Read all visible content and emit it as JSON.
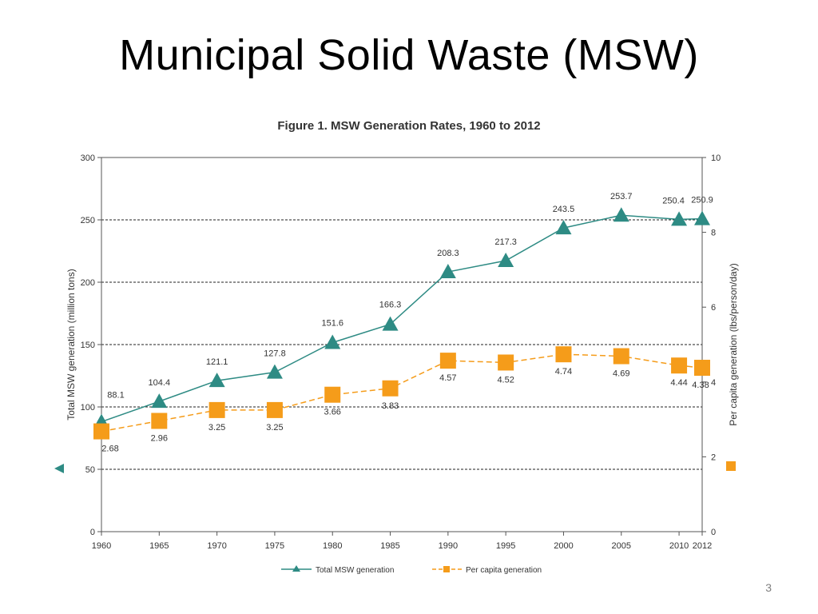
{
  "slide": {
    "title": "Municipal Solid Waste (MSW)",
    "page_number": "3"
  },
  "chart_data": {
    "type": "line",
    "title": "Figure 1. MSW Generation Rates, 1960 to 2012",
    "x": [
      1960,
      1965,
      1970,
      1975,
      1980,
      1985,
      1990,
      1995,
      2000,
      2005,
      2010,
      2012
    ],
    "x_tick_labels": [
      "1960",
      "1965",
      "1970",
      "1975",
      "1980",
      "1985",
      "1990",
      "1995",
      "2000",
      "2005",
      "2010",
      "2012"
    ],
    "ylabel_left": "Total MSW generation (million tons)",
    "ylabel_right": "Per capita generation (lbs/person/day)",
    "ylim_left": [
      0,
      300
    ],
    "ylim_right": [
      0,
      10
    ],
    "yticks_left": [
      "0",
      "50",
      "100",
      "150",
      "200",
      "250",
      "300"
    ],
    "yticks_right": [
      "0",
      "2",
      "4",
      "6",
      "8",
      "10"
    ],
    "grid": "horizontal dashed",
    "legend_position": "bottom",
    "series": [
      {
        "name": "Total MSW generation",
        "axis": "left",
        "marker": "triangle",
        "color": "#2e8b84",
        "values": [
          88.1,
          104.4,
          121.1,
          127.8,
          151.6,
          166.3,
          208.3,
          217.3,
          243.5,
          253.7,
          250.4,
          250.9
        ],
        "labels": [
          "88.1",
          "104.4",
          "121.1",
          "127.8",
          "151.6",
          "166.3",
          "208.3",
          "217.3",
          "243.5",
          "253.7",
          "250.4",
          "250.9"
        ]
      },
      {
        "name": "Per capita generation",
        "axis": "right",
        "marker": "square",
        "color": "#f59c1a",
        "values": [
          2.68,
          2.96,
          3.25,
          3.25,
          3.66,
          3.83,
          4.57,
          4.52,
          4.74,
          4.69,
          4.44,
          4.38
        ],
        "labels": [
          "2.68",
          "2.96",
          "3.25",
          "3.25",
          "3.66",
          "3.83",
          "4.57",
          "4.52",
          "4.74",
          "4.69",
          "4.44",
          "4.38"
        ]
      }
    ]
  }
}
